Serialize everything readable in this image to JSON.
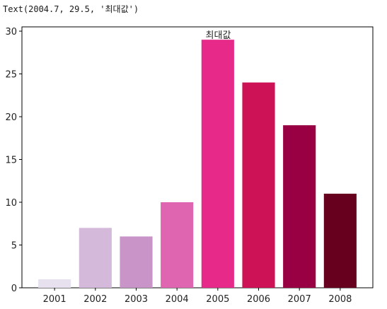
{
  "output_text": "Text(2004.7, 29.5, '최대값')",
  "chart_data": {
    "type": "bar",
    "categories": [
      "2001",
      "2002",
      "2003",
      "2004",
      "2005",
      "2006",
      "2007",
      "2008"
    ],
    "values": [
      1,
      7,
      6,
      10,
      29,
      24,
      19,
      11
    ],
    "colors": [
      "#e7e1ef",
      "#d4b9da",
      "#c994c7",
      "#df65b0",
      "#e7298a",
      "#ce1256",
      "#980043",
      "#67001f"
    ],
    "ylim": [
      0,
      30.5
    ],
    "yticks": [
      0,
      5,
      10,
      15,
      20,
      25,
      30
    ],
    "grid": false,
    "annotation": {
      "text": "최대값",
      "x": 2004.7,
      "y": 29.5
    }
  }
}
